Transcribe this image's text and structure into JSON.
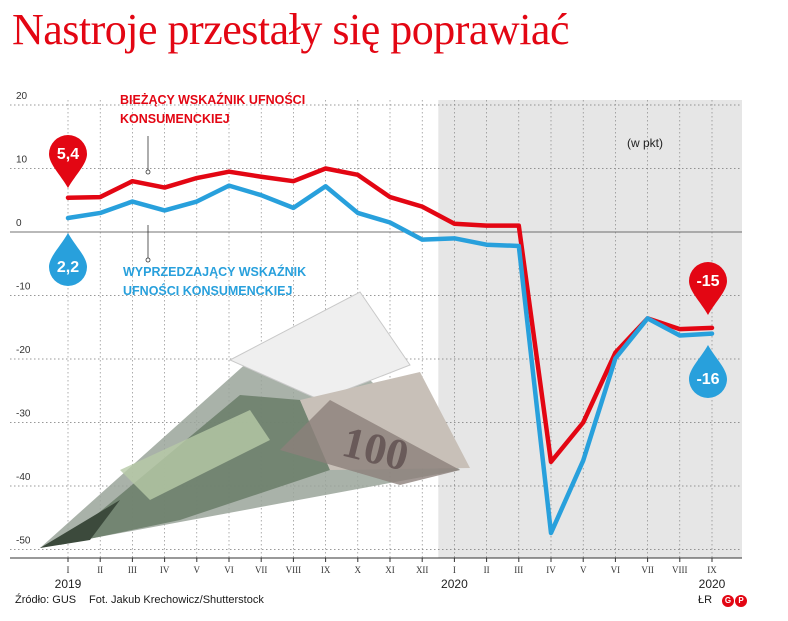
{
  "title": "Nastroje przestały się poprawiać",
  "footer": {
    "source": "Źródło: GUS",
    "photo": "Fot. Jakub Krechowicz/Shutterstock",
    "initials": "ŁR",
    "logo_left": "G",
    "logo_right": "P"
  },
  "colors": {
    "red": "#e30613",
    "blue": "#28a0dc",
    "shade": "#e6e6e6",
    "grid": "#777777"
  },
  "illustration": "banknote-paper-plane",
  "chart_data": {
    "type": "line",
    "unit_label": "(w pkt)",
    "x": [
      "I",
      "II",
      "III",
      "IV",
      "V",
      "VI",
      "VII",
      "VIII",
      "IX",
      "X",
      "XI",
      "XII",
      "I",
      "II",
      "III",
      "IV",
      "V",
      "VI",
      "VII",
      "VIII",
      "IX"
    ],
    "year_labels": [
      {
        "index": 0,
        "label": "2019"
      },
      {
        "index": 12,
        "label": "2020"
      },
      {
        "index": 20,
        "label": "2020"
      }
    ],
    "shaded_from_index": 12,
    "ylim": [
      -50,
      20
    ],
    "yticks": [
      20,
      10,
      0,
      -10,
      -20,
      -30,
      -40,
      -50
    ],
    "grid": true,
    "series": [
      {
        "name": "BIEŻĄCY WSKAŹNIK UFNOŚCI KONSUMENCKIEJ",
        "name_lines": [
          "BIEŻĄCY WSKAŹNIK UFNOŚCI",
          "KONSUMENCKIEJ"
        ],
        "color": "#e30613",
        "values": [
          5.4,
          5.5,
          8.0,
          7.0,
          8.5,
          9.5,
          8.7,
          8.0,
          10.0,
          9.0,
          5.5,
          4.0,
          1.3,
          1.0,
          1.0,
          -36.2,
          -30.0,
          -19.0,
          -13.6,
          -15.3,
          -15.1
        ],
        "start_label": "5,4",
        "end_label": "-15"
      },
      {
        "name": "WYPRZEDZAJĄCY WSKAŹNIK UFNOŚCI KONSUMENCKIEJ",
        "name_lines": [
          "WYPRZEDZAJĄCY WSKAŹNIK",
          "UFNOŚCI KONSUMENCKIEJ"
        ],
        "color": "#28a0dc",
        "values": [
          2.2,
          3.0,
          4.8,
          3.4,
          4.8,
          7.3,
          5.8,
          3.8,
          7.2,
          3.0,
          1.5,
          -1.2,
          -1.0,
          -2.0,
          -2.2,
          -47.4,
          -36.0,
          -19.9,
          -13.6,
          -16.3,
          -16.0
        ],
        "start_label": "2,2",
        "end_label": "-16"
      }
    ]
  }
}
